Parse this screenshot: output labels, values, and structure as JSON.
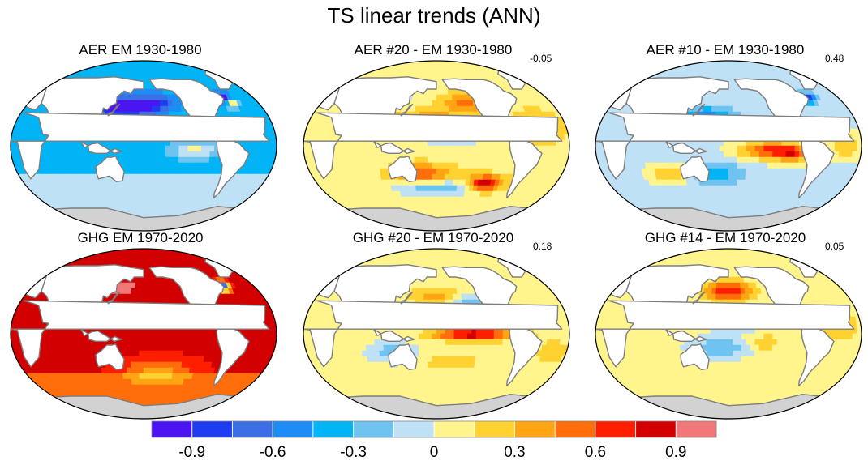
{
  "figure": {
    "title": "TS linear trends (ANN)"
  },
  "chart_data": {
    "type": "heatmap",
    "title": "TS linear trends (ANN)",
    "panels": [
      {
        "id": "aer-em",
        "title": "AER EM 1930-1980",
        "correlation": "",
        "pattern": "aer_em",
        "description": "cooling almost everywhere, strongest in North Pacific"
      },
      {
        "id": "aer-20",
        "title": "AER #20 - EM 1930-1980",
        "correlation": "-0.05",
        "pattern": "aer_20"
      },
      {
        "id": "aer-10",
        "title": "AER #10 - EM 1930-1980",
        "correlation": "0.48",
        "pattern": "aer_10"
      },
      {
        "id": "ghg-em",
        "title": "GHG EM 1970-2020",
        "correlation": "",
        "pattern": "ghg_em"
      },
      {
        "id": "ghg-20",
        "title": "GHG #20 - EM 1970-2020",
        "correlation": "0.18",
        "pattern": "ghg_20"
      },
      {
        "id": "ghg-14",
        "title": "GHG #14 - EM 1970-2020",
        "correlation": "0.05",
        "pattern": "ghg_14"
      }
    ],
    "colorbar": {
      "levels": [
        -1.05,
        -0.9,
        -0.75,
        -0.6,
        -0.45,
        -0.3,
        -0.15,
        0,
        0.15,
        0.3,
        0.45,
        0.6,
        0.75,
        0.9,
        1.05
      ],
      "colors": [
        "#4b14f0",
        "#1e3cf0",
        "#3c6ee6",
        "#1e8cf5",
        "#00b4f5",
        "#6ec3f0",
        "#bee1f5",
        "#fff58c",
        "#ffd232",
        "#ffa514",
        "#ff6e0a",
        "#ff1e00",
        "#d20000",
        "#f07878"
      ],
      "tick_labels": [
        "-0.9",
        "-0.6",
        "-0.3",
        "0",
        "0.3",
        "0.6",
        "0.9"
      ],
      "tick_values": [
        -0.9,
        -0.6,
        -0.3,
        0,
        0.3,
        0.6,
        0.9
      ]
    },
    "colors": {
      "land": "#d2d2d2",
      "coast": "#7d7d7d"
    }
  }
}
